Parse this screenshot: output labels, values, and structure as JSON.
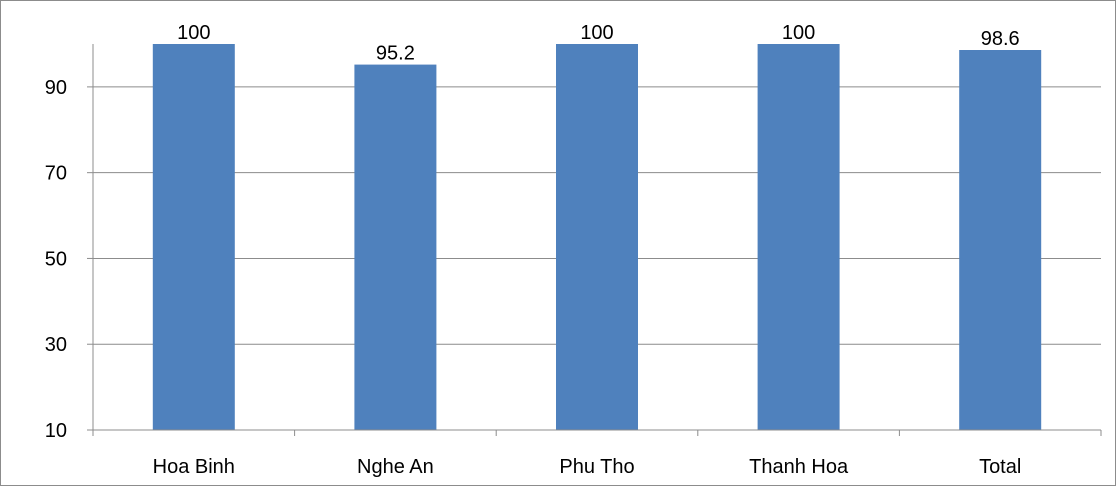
{
  "chart_data": {
    "type": "bar",
    "categories": [
      "Hoa Binh",
      "Nghe An",
      "Phu Tho",
      "Thanh Hoa",
      "Total"
    ],
    "series": [
      {
        "values": [
          100,
          95.2,
          100,
          100,
          98.6
        ],
        "color": "#4f81bd"
      }
    ],
    "data_labels": [
      "100",
      "95.2",
      "100",
      "100",
      "98.6"
    ],
    "yticks": [
      10,
      30,
      50,
      70,
      90
    ],
    "ylim": [
      10,
      100
    ],
    "grid": true,
    "legend": false,
    "title": "",
    "xlabel": "",
    "ylabel": ""
  },
  "colors": {
    "bar": "#4f81bd",
    "gridline": "#8c8c8c",
    "axis": "#8c8c8c",
    "frame": "#8c8c8c",
    "text": "#000000"
  }
}
